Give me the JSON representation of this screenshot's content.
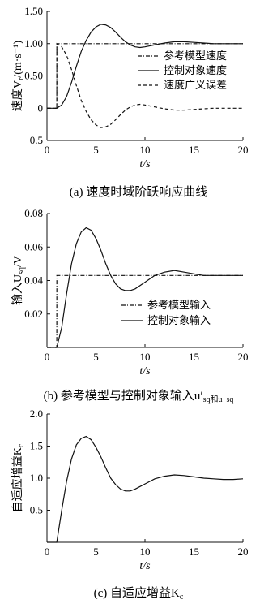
{
  "chart_data": [
    {
      "type": "line",
      "caption": "(a) 速度时域阶跃响应曲线",
      "xlabel": "t/s",
      "ylabel": "速度V_r/(m·s⁻¹)",
      "xlim": [
        0,
        20
      ],
      "ylim": [
        -0.5,
        1.5
      ],
      "xticks": [
        0,
        5,
        10,
        15,
        20
      ],
      "yticks": [
        -0.5,
        0,
        0.5,
        1.0,
        1.5
      ],
      "ytick_labels": [
        "−0.5",
        "0",
        "0.50",
        "1.00",
        "1.50"
      ],
      "legend_position": "right",
      "series": [
        {
          "name": "参考模型速度",
          "style": "dashdot",
          "x": [
            0,
            1.0,
            1.01,
            20
          ],
          "y": [
            0,
            0,
            1.0,
            1.0
          ]
        },
        {
          "name": "控制对象速度",
          "style": "solid",
          "x": [
            0,
            1,
            1.5,
            2,
            2.5,
            3,
            3.5,
            4,
            4.5,
            5,
            5.5,
            6,
            6.5,
            7,
            7.5,
            8,
            8.5,
            9,
            9.5,
            10,
            11,
            12,
            13,
            14,
            15,
            16,
            17,
            18,
            19,
            20
          ],
          "y": [
            0,
            0,
            0.05,
            0.18,
            0.4,
            0.65,
            0.88,
            1.05,
            1.18,
            1.26,
            1.3,
            1.29,
            1.25,
            1.18,
            1.1,
            1.03,
            0.98,
            0.95,
            0.94,
            0.95,
            0.98,
            1.01,
            1.03,
            1.03,
            1.02,
            1.01,
            1.0,
            1.0,
            1.0,
            1.0
          ]
        },
        {
          "name": "速度广义误差",
          "style": "dashed",
          "x": [
            0,
            1.0,
            1.01,
            1.5,
            2,
            2.5,
            3,
            3.5,
            4,
            4.5,
            5,
            5.5,
            6,
            6.5,
            7,
            7.5,
            8,
            8.5,
            9,
            9.5,
            10,
            11,
            12,
            13,
            14,
            15,
            16,
            17,
            18,
            19,
            20
          ],
          "y": [
            0,
            0,
            1.0,
            0.95,
            0.82,
            0.6,
            0.35,
            0.12,
            -0.05,
            -0.18,
            -0.26,
            -0.3,
            -0.29,
            -0.25,
            -0.18,
            -0.1,
            -0.03,
            0.02,
            0.05,
            0.06,
            0.05,
            0.02,
            -0.01,
            -0.03,
            -0.03,
            -0.02,
            -0.01,
            0,
            0,
            0,
            0
          ]
        }
      ]
    },
    {
      "type": "line",
      "caption": "(b) 参考模型与控制对象输入u′_sq和u_sq",
      "xlabel": "t/s",
      "ylabel": "输入U_sq/V",
      "xlim": [
        0,
        20
      ],
      "ylim": [
        0,
        0.08
      ],
      "xticks": [
        0,
        5,
        10,
        15,
        20
      ],
      "yticks": [
        0,
        0.02,
        0.04,
        0.06,
        0.08
      ],
      "ytick_labels": [
        "",
        "0.02",
        "0.04",
        "0.06",
        "0.08"
      ],
      "legend_position": "bottom-right",
      "series": [
        {
          "name": "参考模型输入",
          "style": "dashdot",
          "x": [
            0,
            1.0,
            1.01,
            20
          ],
          "y": [
            0,
            0,
            0.043,
            0.043
          ]
        },
        {
          "name": "控制对象输入",
          "style": "solid",
          "x": [
            0,
            1.0,
            1.5,
            2,
            2.5,
            3,
            3.5,
            4,
            4.5,
            5,
            5.5,
            6,
            6.5,
            7,
            7.5,
            8,
            8.5,
            9,
            9.5,
            10,
            11,
            12,
            13,
            14,
            15,
            16,
            17,
            18,
            19,
            20
          ],
          "y": [
            0,
            0,
            0.012,
            0.032,
            0.05,
            0.062,
            0.069,
            0.0715,
            0.07,
            0.065,
            0.058,
            0.05,
            0.043,
            0.038,
            0.035,
            0.034,
            0.034,
            0.035,
            0.037,
            0.039,
            0.043,
            0.045,
            0.046,
            0.045,
            0.044,
            0.043,
            0.043,
            0.043,
            0.043,
            0.043
          ]
        }
      ]
    },
    {
      "type": "line",
      "caption": "(c) 自适应增益K_c",
      "xlabel": "t/s",
      "ylabel": "自适应增益K_c",
      "xlim": [
        0,
        20
      ],
      "ylim": [
        0,
        2.0
      ],
      "xticks": [
        0,
        5,
        10,
        15,
        20
      ],
      "yticks": [
        0.5,
        1.0,
        1.5,
        2.0
      ],
      "ytick_labels": [
        "0.5",
        "1.0",
        "1.5",
        "2.0"
      ],
      "series": [
        {
          "name": "",
          "style": "solid",
          "x": [
            0,
            1.0,
            1.5,
            2,
            2.5,
            3,
            3.5,
            4,
            4.5,
            5,
            5.5,
            6,
            6.5,
            7,
            7.5,
            8,
            8.5,
            9,
            9.5,
            10,
            11,
            12,
            13,
            14,
            15,
            16,
            17,
            18,
            19,
            20
          ],
          "y": [
            0,
            0,
            0.5,
            0.95,
            1.3,
            1.52,
            1.62,
            1.65,
            1.6,
            1.48,
            1.33,
            1.16,
            1.0,
            0.9,
            0.83,
            0.8,
            0.8,
            0.83,
            0.87,
            0.91,
            0.99,
            1.03,
            1.05,
            1.04,
            1.02,
            1.0,
            0.99,
            0.98,
            0.98,
            0.99
          ]
        }
      ]
    }
  ]
}
